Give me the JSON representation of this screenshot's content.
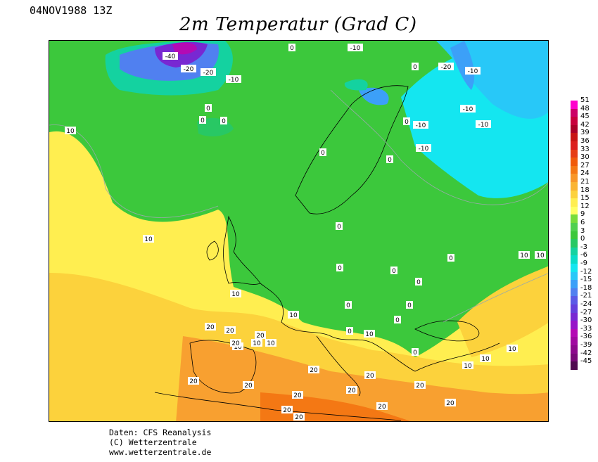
{
  "header": {
    "datetime": "04NOV1988 13Z",
    "title": "2m Temperatur (Grad C)"
  },
  "map": {
    "variable": "2m temperature",
    "contour_labels": [
      "-40",
      "-20",
      "-20",
      "-10",
      "-10",
      "-20",
      "-10",
      "-10",
      "-10",
      "-10",
      "-10",
      "0",
      "0",
      "0",
      "0",
      "0",
      "0",
      "0",
      "0",
      "0",
      "0",
      "0",
      "0",
      "0",
      "0",
      "0",
      "0",
      "0",
      "0",
      "10",
      "10",
      "10",
      "10",
      "10",
      "10",
      "10",
      "10",
      "10",
      "10",
      "10",
      "10",
      "10",
      "20",
      "20",
      "20",
      "20",
      "20",
      "20",
      "20",
      "20",
      "20",
      "20",
      "20",
      "20",
      "20",
      "20",
      "20"
    ]
  },
  "legend": {
    "levels": [
      "51",
      "48",
      "45",
      "42",
      "39",
      "36",
      "33",
      "30",
      "27",
      "24",
      "21",
      "18",
      "15",
      "12",
      "9",
      "6",
      "3",
      "0",
      "-3",
      "-6",
      "-9",
      "-12",
      "-15",
      "-18",
      "-21",
      "-24",
      "-27",
      "-30",
      "-33",
      "-36",
      "-39",
      "-42",
      "-45"
    ],
    "colors": [
      "#ff00cc",
      "#cc0066",
      "#c8003c",
      "#aa0028",
      "#c81414",
      "#dc1e1e",
      "#e63c14",
      "#f05a0a",
      "#f47814",
      "#f89628",
      "#fab432",
      "#fcd23c",
      "#ffee50",
      "#ffff64",
      "#78dc3c",
      "#50d050",
      "#3cc83c",
      "#28c864",
      "#14d2a0",
      "#0adcc8",
      "#14e6f0",
      "#28c8f8",
      "#3ca0f8",
      "#5080f0",
      "#5a5ae6",
      "#6440dc",
      "#7828d2",
      "#9614c8",
      "#b40ab4",
      "#a00aa0",
      "#8c0a8c",
      "#780a78",
      "#500a50"
    ]
  },
  "credits": {
    "line1": "Daten: CFS Reanalysis",
    "line2": "(C) Wetterzentrale",
    "line3": "www.wetterzentrale.de"
  }
}
